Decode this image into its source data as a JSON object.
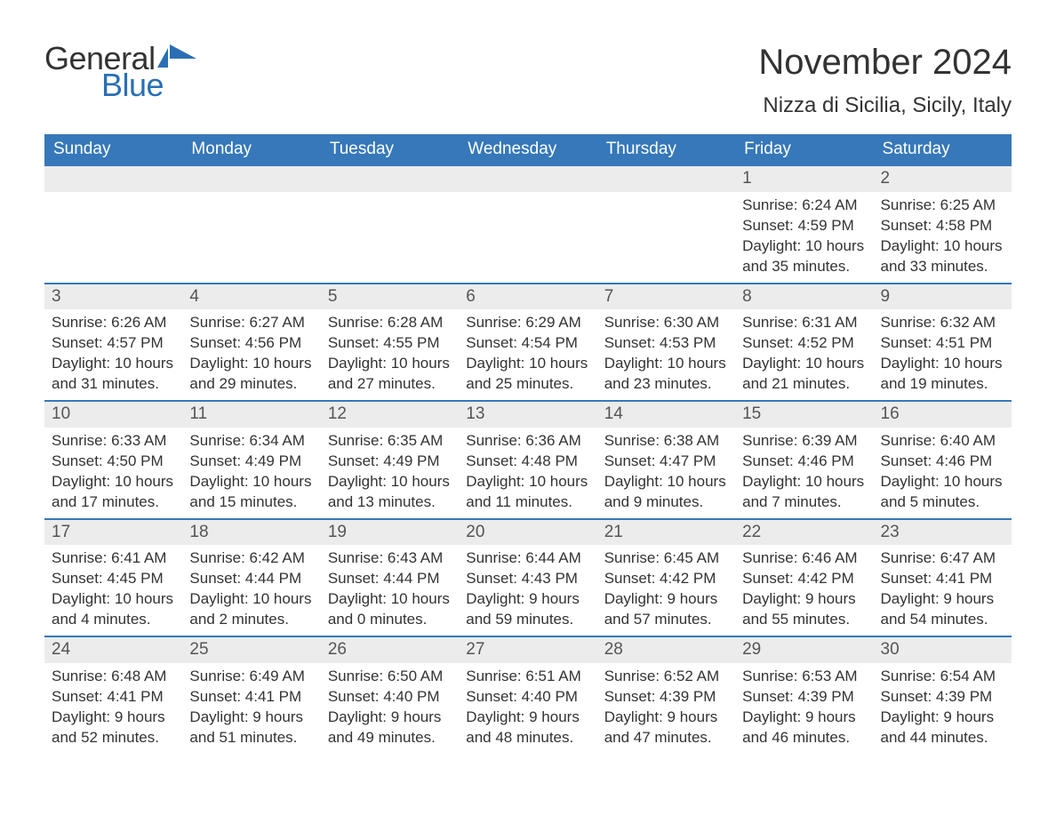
{
  "brand": {
    "word1": "General",
    "word2": "Blue",
    "text_color": "#333333",
    "accent_color": "#2a6fb5"
  },
  "title": "November 2024",
  "location": "Nizza di Sicilia, Sicily, Italy",
  "colors": {
    "header_bg": "#3678b9",
    "header_text": "#ffffff",
    "band_bg": "#ececec",
    "band_border": "#3678b9",
    "text": "#333333",
    "page_bg": "#ffffff"
  },
  "typography": {
    "title_fontsize": 40,
    "location_fontsize": 24,
    "weekday_fontsize": 19,
    "daynum_fontsize": 19,
    "detail_fontsize": 17
  },
  "calendar": {
    "type": "table",
    "weekdays": [
      "Sunday",
      "Monday",
      "Tuesday",
      "Wednesday",
      "Thursday",
      "Friday",
      "Saturday"
    ],
    "weeks": [
      [
        null,
        null,
        null,
        null,
        null,
        {
          "day": "1",
          "sunrise": "Sunrise: 6:24 AM",
          "sunset": "Sunset: 4:59 PM",
          "daylight": "Daylight: 10 hours and 35 minutes."
        },
        {
          "day": "2",
          "sunrise": "Sunrise: 6:25 AM",
          "sunset": "Sunset: 4:58 PM",
          "daylight": "Daylight: 10 hours and 33 minutes."
        }
      ],
      [
        {
          "day": "3",
          "sunrise": "Sunrise: 6:26 AM",
          "sunset": "Sunset: 4:57 PM",
          "daylight": "Daylight: 10 hours and 31 minutes."
        },
        {
          "day": "4",
          "sunrise": "Sunrise: 6:27 AM",
          "sunset": "Sunset: 4:56 PM",
          "daylight": "Daylight: 10 hours and 29 minutes."
        },
        {
          "day": "5",
          "sunrise": "Sunrise: 6:28 AM",
          "sunset": "Sunset: 4:55 PM",
          "daylight": "Daylight: 10 hours and 27 minutes."
        },
        {
          "day": "6",
          "sunrise": "Sunrise: 6:29 AM",
          "sunset": "Sunset: 4:54 PM",
          "daylight": "Daylight: 10 hours and 25 minutes."
        },
        {
          "day": "7",
          "sunrise": "Sunrise: 6:30 AM",
          "sunset": "Sunset: 4:53 PM",
          "daylight": "Daylight: 10 hours and 23 minutes."
        },
        {
          "day": "8",
          "sunrise": "Sunrise: 6:31 AM",
          "sunset": "Sunset: 4:52 PM",
          "daylight": "Daylight: 10 hours and 21 minutes."
        },
        {
          "day": "9",
          "sunrise": "Sunrise: 6:32 AM",
          "sunset": "Sunset: 4:51 PM",
          "daylight": "Daylight: 10 hours and 19 minutes."
        }
      ],
      [
        {
          "day": "10",
          "sunrise": "Sunrise: 6:33 AM",
          "sunset": "Sunset: 4:50 PM",
          "daylight": "Daylight: 10 hours and 17 minutes."
        },
        {
          "day": "11",
          "sunrise": "Sunrise: 6:34 AM",
          "sunset": "Sunset: 4:49 PM",
          "daylight": "Daylight: 10 hours and 15 minutes."
        },
        {
          "day": "12",
          "sunrise": "Sunrise: 6:35 AM",
          "sunset": "Sunset: 4:49 PM",
          "daylight": "Daylight: 10 hours and 13 minutes."
        },
        {
          "day": "13",
          "sunrise": "Sunrise: 6:36 AM",
          "sunset": "Sunset: 4:48 PM",
          "daylight": "Daylight: 10 hours and 11 minutes."
        },
        {
          "day": "14",
          "sunrise": "Sunrise: 6:38 AM",
          "sunset": "Sunset: 4:47 PM",
          "daylight": "Daylight: 10 hours and 9 minutes."
        },
        {
          "day": "15",
          "sunrise": "Sunrise: 6:39 AM",
          "sunset": "Sunset: 4:46 PM",
          "daylight": "Daylight: 10 hours and 7 minutes."
        },
        {
          "day": "16",
          "sunrise": "Sunrise: 6:40 AM",
          "sunset": "Sunset: 4:46 PM",
          "daylight": "Daylight: 10 hours and 5 minutes."
        }
      ],
      [
        {
          "day": "17",
          "sunrise": "Sunrise: 6:41 AM",
          "sunset": "Sunset: 4:45 PM",
          "daylight": "Daylight: 10 hours and 4 minutes."
        },
        {
          "day": "18",
          "sunrise": "Sunrise: 6:42 AM",
          "sunset": "Sunset: 4:44 PM",
          "daylight": "Daylight: 10 hours and 2 minutes."
        },
        {
          "day": "19",
          "sunrise": "Sunrise: 6:43 AM",
          "sunset": "Sunset: 4:44 PM",
          "daylight": "Daylight: 10 hours and 0 minutes."
        },
        {
          "day": "20",
          "sunrise": "Sunrise: 6:44 AM",
          "sunset": "Sunset: 4:43 PM",
          "daylight": "Daylight: 9 hours and 59 minutes."
        },
        {
          "day": "21",
          "sunrise": "Sunrise: 6:45 AM",
          "sunset": "Sunset: 4:42 PM",
          "daylight": "Daylight: 9 hours and 57 minutes."
        },
        {
          "day": "22",
          "sunrise": "Sunrise: 6:46 AM",
          "sunset": "Sunset: 4:42 PM",
          "daylight": "Daylight: 9 hours and 55 minutes."
        },
        {
          "day": "23",
          "sunrise": "Sunrise: 6:47 AM",
          "sunset": "Sunset: 4:41 PM",
          "daylight": "Daylight: 9 hours and 54 minutes."
        }
      ],
      [
        {
          "day": "24",
          "sunrise": "Sunrise: 6:48 AM",
          "sunset": "Sunset: 4:41 PM",
          "daylight": "Daylight: 9 hours and 52 minutes."
        },
        {
          "day": "25",
          "sunrise": "Sunrise: 6:49 AM",
          "sunset": "Sunset: 4:41 PM",
          "daylight": "Daylight: 9 hours and 51 minutes."
        },
        {
          "day": "26",
          "sunrise": "Sunrise: 6:50 AM",
          "sunset": "Sunset: 4:40 PM",
          "daylight": "Daylight: 9 hours and 49 minutes."
        },
        {
          "day": "27",
          "sunrise": "Sunrise: 6:51 AM",
          "sunset": "Sunset: 4:40 PM",
          "daylight": "Daylight: 9 hours and 48 minutes."
        },
        {
          "day": "28",
          "sunrise": "Sunrise: 6:52 AM",
          "sunset": "Sunset: 4:39 PM",
          "daylight": "Daylight: 9 hours and 47 minutes."
        },
        {
          "day": "29",
          "sunrise": "Sunrise: 6:53 AM",
          "sunset": "Sunset: 4:39 PM",
          "daylight": "Daylight: 9 hours and 46 minutes."
        },
        {
          "day": "30",
          "sunrise": "Sunrise: 6:54 AM",
          "sunset": "Sunset: 4:39 PM",
          "daylight": "Daylight: 9 hours and 44 minutes."
        }
      ]
    ]
  }
}
